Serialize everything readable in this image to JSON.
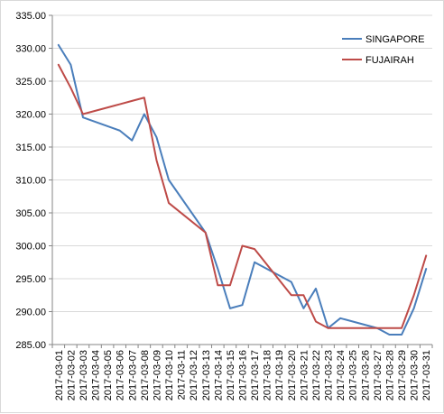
{
  "chart_data": {
    "type": "line",
    "x": [
      "2017-03-01",
      "2017-03-02",
      "2017-03-03",
      "2017-03-06",
      "2017-03-07",
      "2017-03-08",
      "2017-03-09",
      "2017-03-10",
      "2017-03-13",
      "2017-03-14",
      "2017-03-15",
      "2017-03-16",
      "2017-03-17",
      "2017-03-20",
      "2017-03-21",
      "2017-03-22",
      "2017-03-23",
      "2017-03-24",
      "2017-03-27",
      "2017-03-28",
      "2017-03-29",
      "2017-03-30",
      "2017-03-31"
    ],
    "x_tick_labels": [
      "2017-03-01",
      "2017-03-02",
      "2017-03-03",
      "2017-03-04",
      "2017-03-05",
      "2017-03-06",
      "2017-03-07",
      "2017-03-08",
      "2017-03-09",
      "2017-03-10",
      "2017-03-11",
      "2017-03-12",
      "2017-03-13",
      "2017-03-14",
      "2017-03-15",
      "2017-03-16",
      "2017-03-17",
      "2017-03-18",
      "2017-03-19",
      "2017-03-20",
      "2017-03-21",
      "2017-03-22",
      "2017-03-23",
      "2017-03-24",
      "2017-03-25",
      "2017-03-26",
      "2017-03-27",
      "2017-03-28",
      "2017-03-29",
      "2017-03-30",
      "2017-03-31"
    ],
    "y_tick_labels": [
      "285.00",
      "290.00",
      "295.00",
      "300.00",
      "305.00",
      "310.00",
      "315.00",
      "320.00",
      "325.00",
      "330.00",
      "335.00"
    ],
    "ylim": [
      285,
      335
    ],
    "grid": "horizontal major gridlines",
    "legend_position": "top-right",
    "series": [
      {
        "name": "SINGAPORE",
        "color": "#4a7ebb",
        "values": [
          330.5,
          327.5,
          319.5,
          317.5,
          316.0,
          320.0,
          316.5,
          310.0,
          302.0,
          296.5,
          290.5,
          291.0,
          297.5,
          294.5,
          290.5,
          293.5,
          287.5,
          289.0,
          287.5,
          286.5,
          286.5,
          290.5,
          296.5
        ]
      },
      {
        "name": "FUJAIRAH",
        "color": "#be4b48",
        "values": [
          327.5,
          324.0,
          320.0,
          321.5,
          322.0,
          322.5,
          313.0,
          306.5,
          302.0,
          294.0,
          294.0,
          300.0,
          299.5,
          292.5,
          292.5,
          288.5,
          287.5,
          287.5,
          287.5,
          287.5,
          287.5,
          292.5,
          298.5
        ]
      }
    ]
  }
}
